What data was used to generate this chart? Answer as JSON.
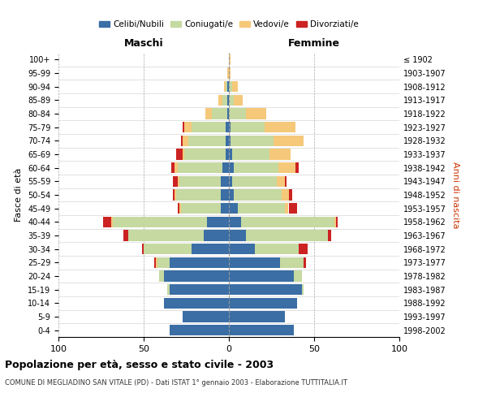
{
  "age_groups": [
    "100+",
    "95-99",
    "90-94",
    "85-89",
    "80-84",
    "75-79",
    "70-74",
    "65-69",
    "60-64",
    "55-59",
    "50-54",
    "45-49",
    "40-44",
    "35-39",
    "30-34",
    "25-29",
    "20-24",
    "15-19",
    "10-14",
    "5-9",
    "0-4"
  ],
  "birth_years": [
    "≤ 1902",
    "1903-1907",
    "1908-1912",
    "1913-1917",
    "1918-1922",
    "1923-1927",
    "1928-1932",
    "1933-1937",
    "1938-1942",
    "1943-1947",
    "1948-1952",
    "1953-1957",
    "1958-1962",
    "1963-1967",
    "1968-1972",
    "1973-1977",
    "1978-1982",
    "1983-1987",
    "1988-1992",
    "1993-1997",
    "1998-2002"
  ],
  "males": {
    "celibe": [
      0,
      0,
      1,
      1,
      1,
      2,
      2,
      2,
      4,
      5,
      5,
      5,
      13,
      15,
      22,
      35,
      38,
      35,
      38,
      27,
      35
    ],
    "coniugato": [
      0,
      0,
      1,
      3,
      9,
      20,
      22,
      24,
      26,
      24,
      26,
      23,
      55,
      44,
      28,
      7,
      3,
      1,
      0,
      0,
      0
    ],
    "vedovo": [
      0,
      1,
      1,
      2,
      4,
      4,
      3,
      1,
      2,
      1,
      1,
      1,
      1,
      0,
      0,
      1,
      0,
      0,
      0,
      0,
      0
    ],
    "divorziato": [
      0,
      0,
      0,
      0,
      0,
      1,
      1,
      4,
      2,
      3,
      1,
      1,
      5,
      3,
      1,
      1,
      0,
      0,
      0,
      0,
      0
    ]
  },
  "females": {
    "nubile": [
      0,
      0,
      0,
      0,
      0,
      1,
      1,
      2,
      3,
      2,
      3,
      5,
      7,
      10,
      15,
      30,
      38,
      43,
      40,
      33,
      38
    ],
    "coniugata": [
      0,
      0,
      2,
      3,
      10,
      20,
      25,
      22,
      26,
      26,
      28,
      28,
      55,
      48,
      26,
      14,
      5,
      1,
      0,
      0,
      0
    ],
    "vedova": [
      1,
      1,
      3,
      5,
      12,
      18,
      18,
      12,
      10,
      5,
      4,
      2,
      1,
      0,
      0,
      0,
      0,
      0,
      0,
      0,
      0
    ],
    "divorziata": [
      0,
      0,
      0,
      0,
      0,
      0,
      0,
      0,
      2,
      1,
      2,
      5,
      1,
      2,
      5,
      1,
      0,
      0,
      0,
      0,
      0
    ]
  },
  "colors": {
    "celibe": "#3a6ea5",
    "coniugato": "#c5d9a0",
    "vedovo": "#f5c87a",
    "divorziato": "#cc2222"
  },
  "xlim": 100,
  "title": "Popolazione per età, sesso e stato civile - 2003",
  "subtitle": "COMUNE DI MEGLIADINO SAN VITALE (PD) - Dati ISTAT 1° gennaio 2003 - Elaborazione TUTTITALIA.IT",
  "ylabel_left": "Fasce di età",
  "ylabel_right": "Anni di nascita",
  "xlabel_left": "Maschi",
  "xlabel_right": "Femmine",
  "legend_labels": [
    "Celibi/Nubili",
    "Coniugati/e",
    "Vedovi/e",
    "Divorziati/e"
  ]
}
